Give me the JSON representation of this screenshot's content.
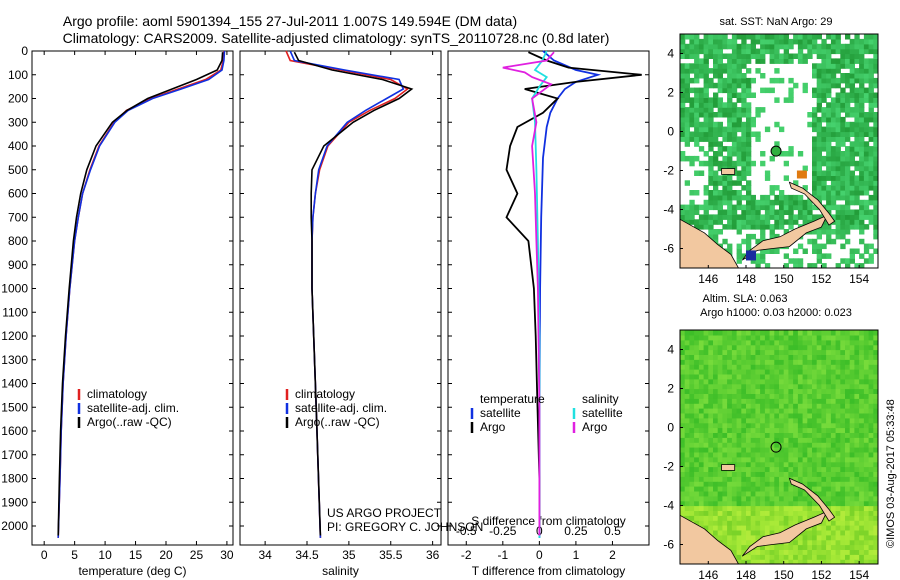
{
  "title": {
    "line1": "Argo profile: aoml 5901394_155 27-Jul-2011 1.007S 149.594E (DM data)",
    "line2": "Climatology: CARS2009. Satellite-adjusted climatology: synTS_20110728.nc (0.8d later)"
  },
  "footer": {
    "project": "US ARGO PROJECT",
    "pi": "PI: GREGORY C. JOHNSON",
    "credit": "©IMOS 03-Aug-2017 05:33:48"
  },
  "colors": {
    "climatology": "#e02020",
    "satellite": "#1030e0",
    "argo": "#000000",
    "sat_salinity": "#20e0e0",
    "argo_salinity": "#e020e0",
    "land": "#f2c8a0",
    "sst_green": "#30b040",
    "sla_green": "#48c828"
  },
  "chart_data": [
    {
      "type": "line",
      "name": "temperature",
      "xlabel": "temperature (deg C)",
      "xlim": [
        -2,
        31
      ],
      "ylim": [
        2080,
        0
      ],
      "xticks": [
        0,
        5,
        10,
        15,
        20,
        25,
        30
      ],
      "yticks": [
        0,
        100,
        200,
        300,
        400,
        500,
        600,
        700,
        800,
        900,
        1000,
        1100,
        1200,
        1300,
        1400,
        1500,
        1600,
        1700,
        1800,
        1900,
        2000
      ],
      "legend": [
        "climatology",
        "satellite-adj. clim.",
        "Argo(..raw -QC)"
      ],
      "series": [
        {
          "name": "climatology",
          "depth": [
            0,
            40,
            80,
            120,
            160,
            200,
            250,
            300,
            400,
            500,
            600,
            700,
            800,
            1000,
            1200,
            1400,
            1600,
            1800,
            2050
          ],
          "values": [
            29.5,
            29.4,
            29.0,
            26.5,
            22.0,
            17.5,
            13.5,
            11.5,
            9.0,
            7.5,
            6.3,
            5.6,
            5.0,
            4.2,
            3.6,
            3.1,
            2.8,
            2.6,
            2.3
          ]
        },
        {
          "name": "satellite-adj. clim.",
          "depth": [
            0,
            40,
            80,
            120,
            160,
            200,
            250,
            300,
            400,
            500,
            600,
            700,
            800,
            1000,
            1200,
            1400,
            1600,
            1800,
            2050
          ],
          "values": [
            29.6,
            29.5,
            29.2,
            27.0,
            22.5,
            17.8,
            13.8,
            11.6,
            9.1,
            7.6,
            6.3,
            5.6,
            5.0,
            4.2,
            3.6,
            3.1,
            2.8,
            2.6,
            2.3
          ]
        },
        {
          "name": "Argo(..raw -QC)",
          "depth": [
            5,
            40,
            80,
            120,
            160,
            200,
            250,
            300,
            400,
            500,
            600,
            700,
            800,
            1000,
            1200,
            1400,
            1600,
            1800,
            2040
          ],
          "values": [
            29.3,
            29.2,
            28.4,
            25.0,
            21.0,
            17.0,
            13.6,
            11.2,
            8.5,
            7.0,
            6.0,
            5.3,
            4.8,
            4.1,
            3.5,
            3.0,
            2.7,
            2.5,
            2.3
          ]
        }
      ]
    },
    {
      "type": "line",
      "name": "salinity",
      "xlabel": "salinity",
      "xlim": [
        33.7,
        36.1
      ],
      "ylim": [
        2080,
        0
      ],
      "xticks": [
        34,
        34.5,
        35,
        35.5,
        36
      ],
      "legend": [
        "climatology",
        "satellite-adj. clim.",
        "Argo(..raw -QC)"
      ],
      "series": [
        {
          "name": "climatology",
          "depth": [
            0,
            40,
            80,
            120,
            160,
            200,
            250,
            300,
            400,
            500,
            600,
            700,
            800,
            1000,
            1200,
            1500,
            2050
          ],
          "values": [
            34.25,
            34.3,
            34.9,
            35.5,
            35.7,
            35.55,
            35.25,
            35.0,
            34.75,
            34.65,
            34.6,
            34.57,
            34.56,
            34.56,
            34.58,
            34.61,
            34.66
          ]
        },
        {
          "name": "satellite-adj. clim.",
          "depth": [
            0,
            40,
            80,
            120,
            160,
            200,
            250,
            300,
            400,
            500,
            600,
            700,
            800,
            1000,
            1200,
            1500,
            2050
          ],
          "values": [
            34.3,
            34.35,
            34.95,
            35.6,
            35.65,
            35.45,
            35.2,
            34.98,
            34.74,
            34.64,
            34.6,
            34.57,
            34.56,
            34.56,
            34.58,
            34.61,
            34.66
          ]
        },
        {
          "name": "Argo(..raw -QC)",
          "depth": [
            5,
            40,
            80,
            120,
            160,
            200,
            250,
            300,
            400,
            500,
            600,
            700,
            800,
            1000,
            1200,
            1500,
            2040
          ],
          "values": [
            34.35,
            34.4,
            34.8,
            35.4,
            35.75,
            35.6,
            35.3,
            35.05,
            34.7,
            34.56,
            34.55,
            34.55,
            34.56,
            34.56,
            34.58,
            34.61,
            34.66
          ]
        }
      ]
    },
    {
      "type": "line",
      "name": "differences",
      "xlabel": "T difference from climatology",
      "xlabel2": "S difference from climatology",
      "xlim": [
        -2.5,
        3.0
      ],
      "ylim": [
        2080,
        0
      ],
      "xticks": [
        -2,
        -1,
        0,
        1,
        2
      ],
      "xticks2_labels": [
        "-0.5",
        "-0.25",
        "0",
        "0.25",
        "0.5"
      ],
      "legend_headers": [
        "temperature",
        "salinity"
      ],
      "legend": [
        "satellite",
        "Argo",
        "satellite",
        "Argo"
      ],
      "series": [
        {
          "name": "T satellite",
          "depth": [
            0,
            40,
            80,
            100,
            130,
            160,
            200,
            260,
            320,
            450,
            700,
            1000,
            1500,
            2050
          ],
          "values": [
            0.1,
            0.4,
            1.0,
            1.6,
            1.0,
            0.7,
            0.5,
            0.3,
            0.2,
            0.1,
            0.05,
            0.02,
            0.0,
            0.0
          ]
        },
        {
          "name": "T Argo",
          "depth": [
            5,
            40,
            70,
            100,
            130,
            160,
            200,
            260,
            320,
            400,
            500,
            600,
            700,
            800,
            1000,
            1200,
            1500,
            1800,
            2040
          ],
          "values": [
            -0.3,
            0.2,
            0.8,
            2.8,
            1.0,
            -0.4,
            0.5,
            0.1,
            -0.6,
            -0.8,
            -0.9,
            -0.6,
            -0.9,
            -0.3,
            -0.15,
            -0.1,
            -0.05,
            0.0,
            0.0
          ]
        },
        {
          "name": "S satellite",
          "depth": [
            0,
            40,
            80,
            110,
            150,
            200,
            300,
            500,
            800,
            1200,
            1600,
            2050
          ],
          "values": [
            0.05,
            0.02,
            -0.03,
            0.05,
            0.0,
            -0.05,
            -0.03,
            -0.02,
            -0.01,
            0.0,
            0.0,
            0.0
          ]
        },
        {
          "name": "S Argo",
          "depth": [
            5,
            40,
            70,
            90,
            110,
            140,
            200,
            300,
            400,
            600,
            800,
            1000,
            1500,
            2040
          ],
          "values": [
            0.1,
            0.05,
            -0.25,
            -0.1,
            -0.05,
            0.08,
            -0.05,
            -0.02,
            -0.05,
            -0.03,
            -0.02,
            -0.01,
            0.0,
            0.0
          ]
        }
      ]
    },
    {
      "type": "heatmap",
      "name": "sst_map",
      "title": "sat. SST: NaN Argo: 29",
      "xlim": [
        144.5,
        155.0
      ],
      "ylim": [
        -7.0,
        5.0
      ],
      "xticks": [
        146,
        148,
        150,
        152,
        154
      ],
      "yticks": [
        4,
        2,
        0,
        -2,
        -4,
        -6
      ],
      "argo_marker": {
        "lon": 149.594,
        "lat": -1.007
      }
    },
    {
      "type": "heatmap",
      "name": "sla_map",
      "title": "Altim. SLA: 0.063",
      "subtitle": "Argo h1000: 0.03 h2000: 0.023",
      "xlim": [
        144.5,
        155.0
      ],
      "ylim": [
        -7.0,
        5.0
      ],
      "xticks": [
        146,
        148,
        150,
        152,
        154
      ],
      "yticks": [
        4,
        2,
        0,
        -2,
        -4,
        -6
      ],
      "argo_marker": {
        "lon": 149.594,
        "lat": -1.007
      }
    }
  ]
}
